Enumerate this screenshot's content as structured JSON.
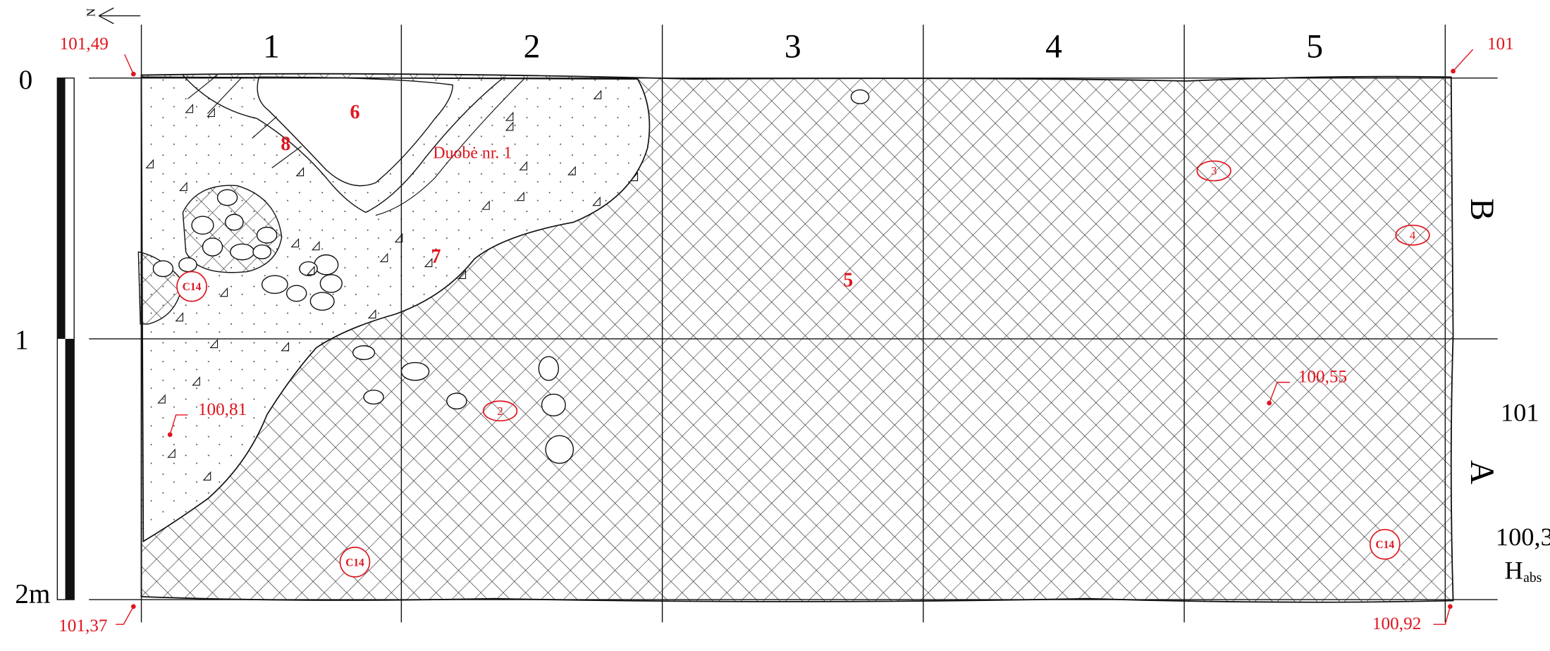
{
  "north_label": "N",
  "columns": [
    "1",
    "2",
    "3",
    "4",
    "5"
  ],
  "rows": [
    "B",
    "A"
  ],
  "scale": [
    "0",
    "1",
    "2m"
  ],
  "elevations": [
    "101,49",
    "101",
    "101,37",
    "100,92",
    "100,81",
    "100,55"
  ],
  "layers": [
    "6",
    "8",
    "7",
    "5"
  ],
  "feature_label": "Duobė nr. 1",
  "finds": [
    "3",
    "4",
    "2"
  ],
  "samples": [
    "C14",
    "C14",
    "C14"
  ],
  "side_labels": [
    "101",
    "100,3"
  ],
  "h_abs": {
    "main": "H",
    "sub": "abs"
  }
}
